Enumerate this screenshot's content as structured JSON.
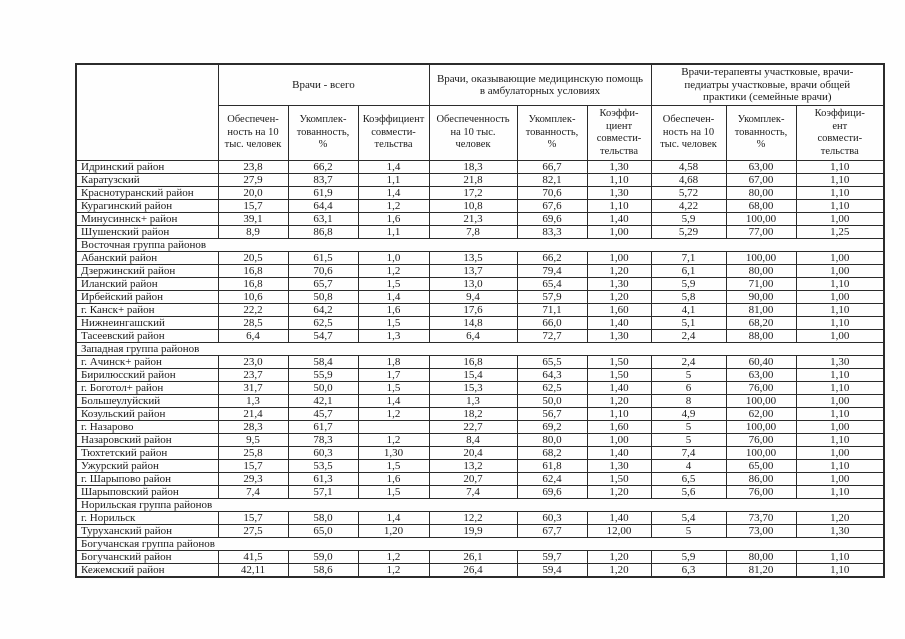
{
  "table": {
    "corner": "",
    "groups": [
      {
        "title": "Врачи - всего"
      },
      {
        "title": "Врачи, оказывающие медицинскую помощь\nв амбулаторных условиях"
      },
      {
        "title": "Врачи-терапевты участковые, врачи-\nпедиатры участковые, врачи общей\nпрактики (семейные врачи)"
      }
    ],
    "subheaders": [
      "Обеспечен-\nность на 10\nтыс. человек",
      "Укомплек-\nтованность,\n%",
      "Коэффициент\nсовмести-\nтельства",
      "Обеспеченность\nна 10 тыс.\nчеловек",
      "Укомплек-\nтованность,\n%",
      "Коэффи-\nциент\nсовмести-\nтельства",
      "Обеспечен-\nность на 10\nтыс. человек",
      "Укомплек-\nтованность,\n%",
      "Коэффици-\nент\nсовмести-\nтельства"
    ],
    "rows": [
      {
        "type": "data",
        "label": "Идринский район",
        "values": [
          "23,8",
          "66,2",
          "1,4",
          "18,3",
          "66,7",
          "1,30",
          "4,58",
          "63,00",
          "1,10"
        ]
      },
      {
        "type": "data",
        "label": "Каратузский",
        "values": [
          "27,9",
          "83,7",
          "1,1",
          "21,8",
          "82,1",
          "1,10",
          "4,68",
          "67,00",
          "1,10"
        ]
      },
      {
        "type": "data",
        "label": "Краснотуранский район",
        "values": [
          "20,0",
          "61,9",
          "1,4",
          "17,2",
          "70,6",
          "1,30",
          "5,72",
          "80,00",
          "1,10"
        ]
      },
      {
        "type": "data",
        "label": "Курагинский район",
        "values": [
          "15,7",
          "64,4",
          "1,2",
          "10,8",
          "67,6",
          "1,10",
          "4,22",
          "68,00",
          "1,10"
        ]
      },
      {
        "type": "data",
        "label": "Минусиннск+ район",
        "values": [
          "39,1",
          "63,1",
          "1,6",
          "21,3",
          "69,6",
          "1,40",
          "5,9",
          "100,00",
          "1,00"
        ]
      },
      {
        "type": "data",
        "label": "Шушенский район",
        "values": [
          "8,9",
          "86,8",
          "1,1",
          "7,8",
          "83,3",
          "1,00",
          "5,29",
          "77,00",
          "1,25"
        ]
      },
      {
        "type": "section",
        "label": "Восточная группа районов"
      },
      {
        "type": "data",
        "label": "Абанский район",
        "values": [
          "20,5",
          "61,5",
          "1,0",
          "13,5",
          "66,2",
          "1,00",
          "7,1",
          "100,00",
          "1,00"
        ]
      },
      {
        "type": "data",
        "label": "Дзержинский район",
        "values": [
          "16,8",
          "70,6",
          "1,2",
          "13,7",
          "79,4",
          "1,20",
          "6,1",
          "80,00",
          "1,00"
        ]
      },
      {
        "type": "data",
        "label": "Иланский район",
        "values": [
          "16,8",
          "65,7",
          "1,5",
          "13,0",
          "65,4",
          "1,30",
          "5,9",
          "71,00",
          "1,10"
        ]
      },
      {
        "type": "data",
        "label": "Ирбейский район",
        "values": [
          "10,6",
          "50,8",
          "1,4",
          "9,4",
          "57,9",
          "1,20",
          "5,8",
          "90,00",
          "1,00"
        ]
      },
      {
        "type": "data",
        "label": "г. Канск+ район",
        "values": [
          "22,2",
          "64,2",
          "1,6",
          "17,6",
          "71,1",
          "1,60",
          "4,1",
          "81,00",
          "1,10"
        ]
      },
      {
        "type": "data",
        "label": "Нижнеингашский",
        "values": [
          "28,5",
          "62,5",
          "1,5",
          "14,8",
          "66,0",
          "1,40",
          "5,1",
          "68,20",
          "1,10"
        ]
      },
      {
        "type": "data",
        "label": "Тасеевский район",
        "values": [
          "6,4",
          "54,7",
          "1,3",
          "6,4",
          "72,7",
          "1,30",
          "2,4",
          "88,00",
          "1,00"
        ]
      },
      {
        "type": "section",
        "label": "Западная группа районов"
      },
      {
        "type": "data",
        "label": "г. Ачинск+ район",
        "values": [
          "23,0",
          "58,4",
          "1,8",
          "16,8",
          "65,5",
          "1,50",
          "2,4",
          "60,40",
          "1,30"
        ]
      },
      {
        "type": "data",
        "label": "Бирилюсский район",
        "values": [
          "23,7",
          "55,9",
          "1,7",
          "15,4",
          "64,3",
          "1,50",
          "5",
          "63,00",
          "1,10"
        ]
      },
      {
        "type": "data",
        "label": "г. Боготол+ район",
        "values": [
          "31,7",
          "50,0",
          "1,5",
          "15,3",
          "62,5",
          "1,40",
          "6",
          "76,00",
          "1,10"
        ]
      },
      {
        "type": "data",
        "label": "Большеулуйский",
        "values": [
          "1,3",
          "42,1",
          "1,4",
          "1,3",
          "50,0",
          "1,20",
          "8",
          "100,00",
          "1,00"
        ]
      },
      {
        "type": "data",
        "label": "Козульский район",
        "values": [
          "21,4",
          "45,7",
          "1,2",
          "18,2",
          "56,7",
          "1,10",
          "4,9",
          "62,00",
          "1,10"
        ]
      },
      {
        "type": "data",
        "label": "г. Назарово",
        "values": [
          "28,3",
          "61,7",
          "",
          "22,7",
          "69,2",
          "1,60",
          "5",
          "100,00",
          "1,00"
        ]
      },
      {
        "type": "data",
        "label": "Назаровский район",
        "values": [
          "9,5",
          "78,3",
          "1,2",
          "8,4",
          "80,0",
          "1,00",
          "5",
          "76,00",
          "1,10"
        ]
      },
      {
        "type": "data",
        "label": "Тюхтетский район",
        "values": [
          "25,8",
          "60,3",
          "1,30",
          "20,4",
          "68,2",
          "1,40",
          "7,4",
          "100,00",
          "1,00"
        ]
      },
      {
        "type": "data",
        "label": "Ужурский район",
        "values": [
          "15,7",
          "53,5",
          "1,5",
          "13,2",
          "61,8",
          "1,30",
          "4",
          "65,00",
          "1,10"
        ]
      },
      {
        "type": "data",
        "label": "г. Шарыпово район",
        "values": [
          "29,3",
          "61,3",
          "1,6",
          "20,7",
          "62,4",
          "1,50",
          "6,5",
          "86,00",
          "1,00"
        ]
      },
      {
        "type": "data",
        "label": "Шарыповский район",
        "values": [
          "7,4",
          "57,1",
          "1,5",
          "7,4",
          "69,6",
          "1,20",
          "5,6",
          "76,00",
          "1,10"
        ]
      },
      {
        "type": "section",
        "label": "Норильская группа районов"
      },
      {
        "type": "data",
        "label": "г. Норильск",
        "values": [
          "15,7",
          "58,0",
          "1,4",
          "12,2",
          "60,3",
          "1,40",
          "5,4",
          "73,70",
          "1,20"
        ]
      },
      {
        "type": "data",
        "label": "Туруханский район",
        "values": [
          "27,5",
          "65,0",
          "1,20",
          "19,9",
          "67,7",
          "12,00",
          "5",
          "73,00",
          "1,30"
        ]
      },
      {
        "type": "section",
        "label": "Богучанская группа районов"
      },
      {
        "type": "data",
        "label": "Богучанский район",
        "values": [
          "41,5",
          "59,0",
          "1,2",
          "26,1",
          "59,7",
          "1,20",
          "5,9",
          "80,00",
          "1,10"
        ]
      },
      {
        "type": "data",
        "label": "Кежемский район",
        "values": [
          "42,11",
          "58,6",
          "1,2",
          "26,4",
          "59,4",
          "1,20",
          "6,3",
          "81,20",
          "1,10"
        ]
      }
    ]
  }
}
